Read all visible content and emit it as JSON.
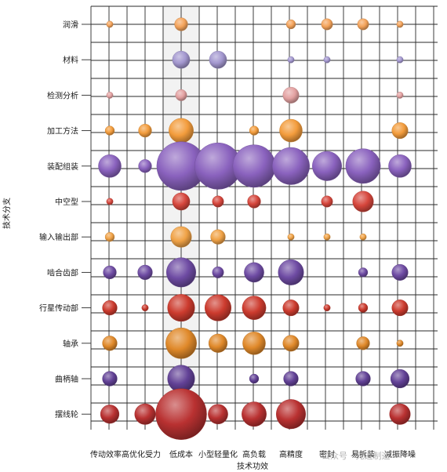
{
  "chart_data": {
    "type": "bubble",
    "title": "",
    "xlabel": "技术功效",
    "ylabel": "技术分支",
    "x_categories": [
      "传动效率高",
      "优化受力",
      "低成本",
      "小型轻量化",
      "高负载",
      "高精度",
      "密封",
      "易拆装",
      "减振降噪"
    ],
    "y_categories": [
      "润滑",
      "材料",
      "检测分析",
      "加工方法",
      "装配组装",
      "中空型",
      "输入输出部",
      "啮合齿部",
      "行星传动部",
      "轴承",
      "曲柄轴",
      "摆线轮"
    ],
    "grid": true,
    "watermark": "公众号 · 先进制造",
    "rows": [
      {
        "branch": "润滑",
        "color": "#f4a35a",
        "values": [
          1,
          0,
          4,
          0,
          0,
          2,
          3,
          3,
          1
        ]
      },
      {
        "branch": "材料",
        "color": "#a397cf",
        "values": [
          0,
          0,
          7,
          7,
          0,
          1,
          1,
          0,
          1
        ]
      },
      {
        "branch": "检测分析",
        "color": "#e3a1a1",
        "values": [
          1,
          0,
          3,
          0,
          0,
          6,
          0,
          0,
          1
        ]
      },
      {
        "branch": "加工方法",
        "color": "#f39c3c",
        "values": [
          2,
          4,
          14,
          0,
          2,
          12,
          0,
          0,
          6
        ]
      },
      {
        "branch": "装配组装",
        "color": "#8a62be",
        "values": [
          12,
          4,
          55,
          50,
          42,
          32,
          20,
          28,
          12
        ]
      },
      {
        "branch": "中空型",
        "color": "#d6463c",
        "values": [
          1,
          0,
          7,
          3,
          4,
          0,
          3,
          10,
          0
        ]
      },
      {
        "branch": "输入输出部",
        "color": "#f0a246",
        "values": [
          2,
          0,
          10,
          5,
          0,
          1,
          1,
          1,
          0
        ]
      },
      {
        "branch": "啮合齿部",
        "color": "#6e4ba3",
        "values": [
          4,
          5,
          20,
          3,
          9,
          15,
          0,
          2,
          6
        ]
      },
      {
        "branch": "行星传动部",
        "color": "#cc3b2e",
        "values": [
          5,
          1,
          17,
          16,
          13,
          6,
          1,
          2,
          6
        ]
      },
      {
        "branch": "轴承",
        "color": "#e0892a",
        "values": [
          5,
          0,
          22,
          8,
          12,
          6,
          0,
          4,
          1
        ]
      },
      {
        "branch": "曲柄轴",
        "color": "#624196",
        "values": [
          5,
          0,
          17,
          0,
          2,
          5,
          0,
          5,
          8
        ]
      },
      {
        "branch": "摆线轮",
        "color": "#b93131",
        "values": [
          8,
          10,
          60,
          9,
          14,
          20,
          0,
          0,
          10
        ]
      }
    ]
  }
}
